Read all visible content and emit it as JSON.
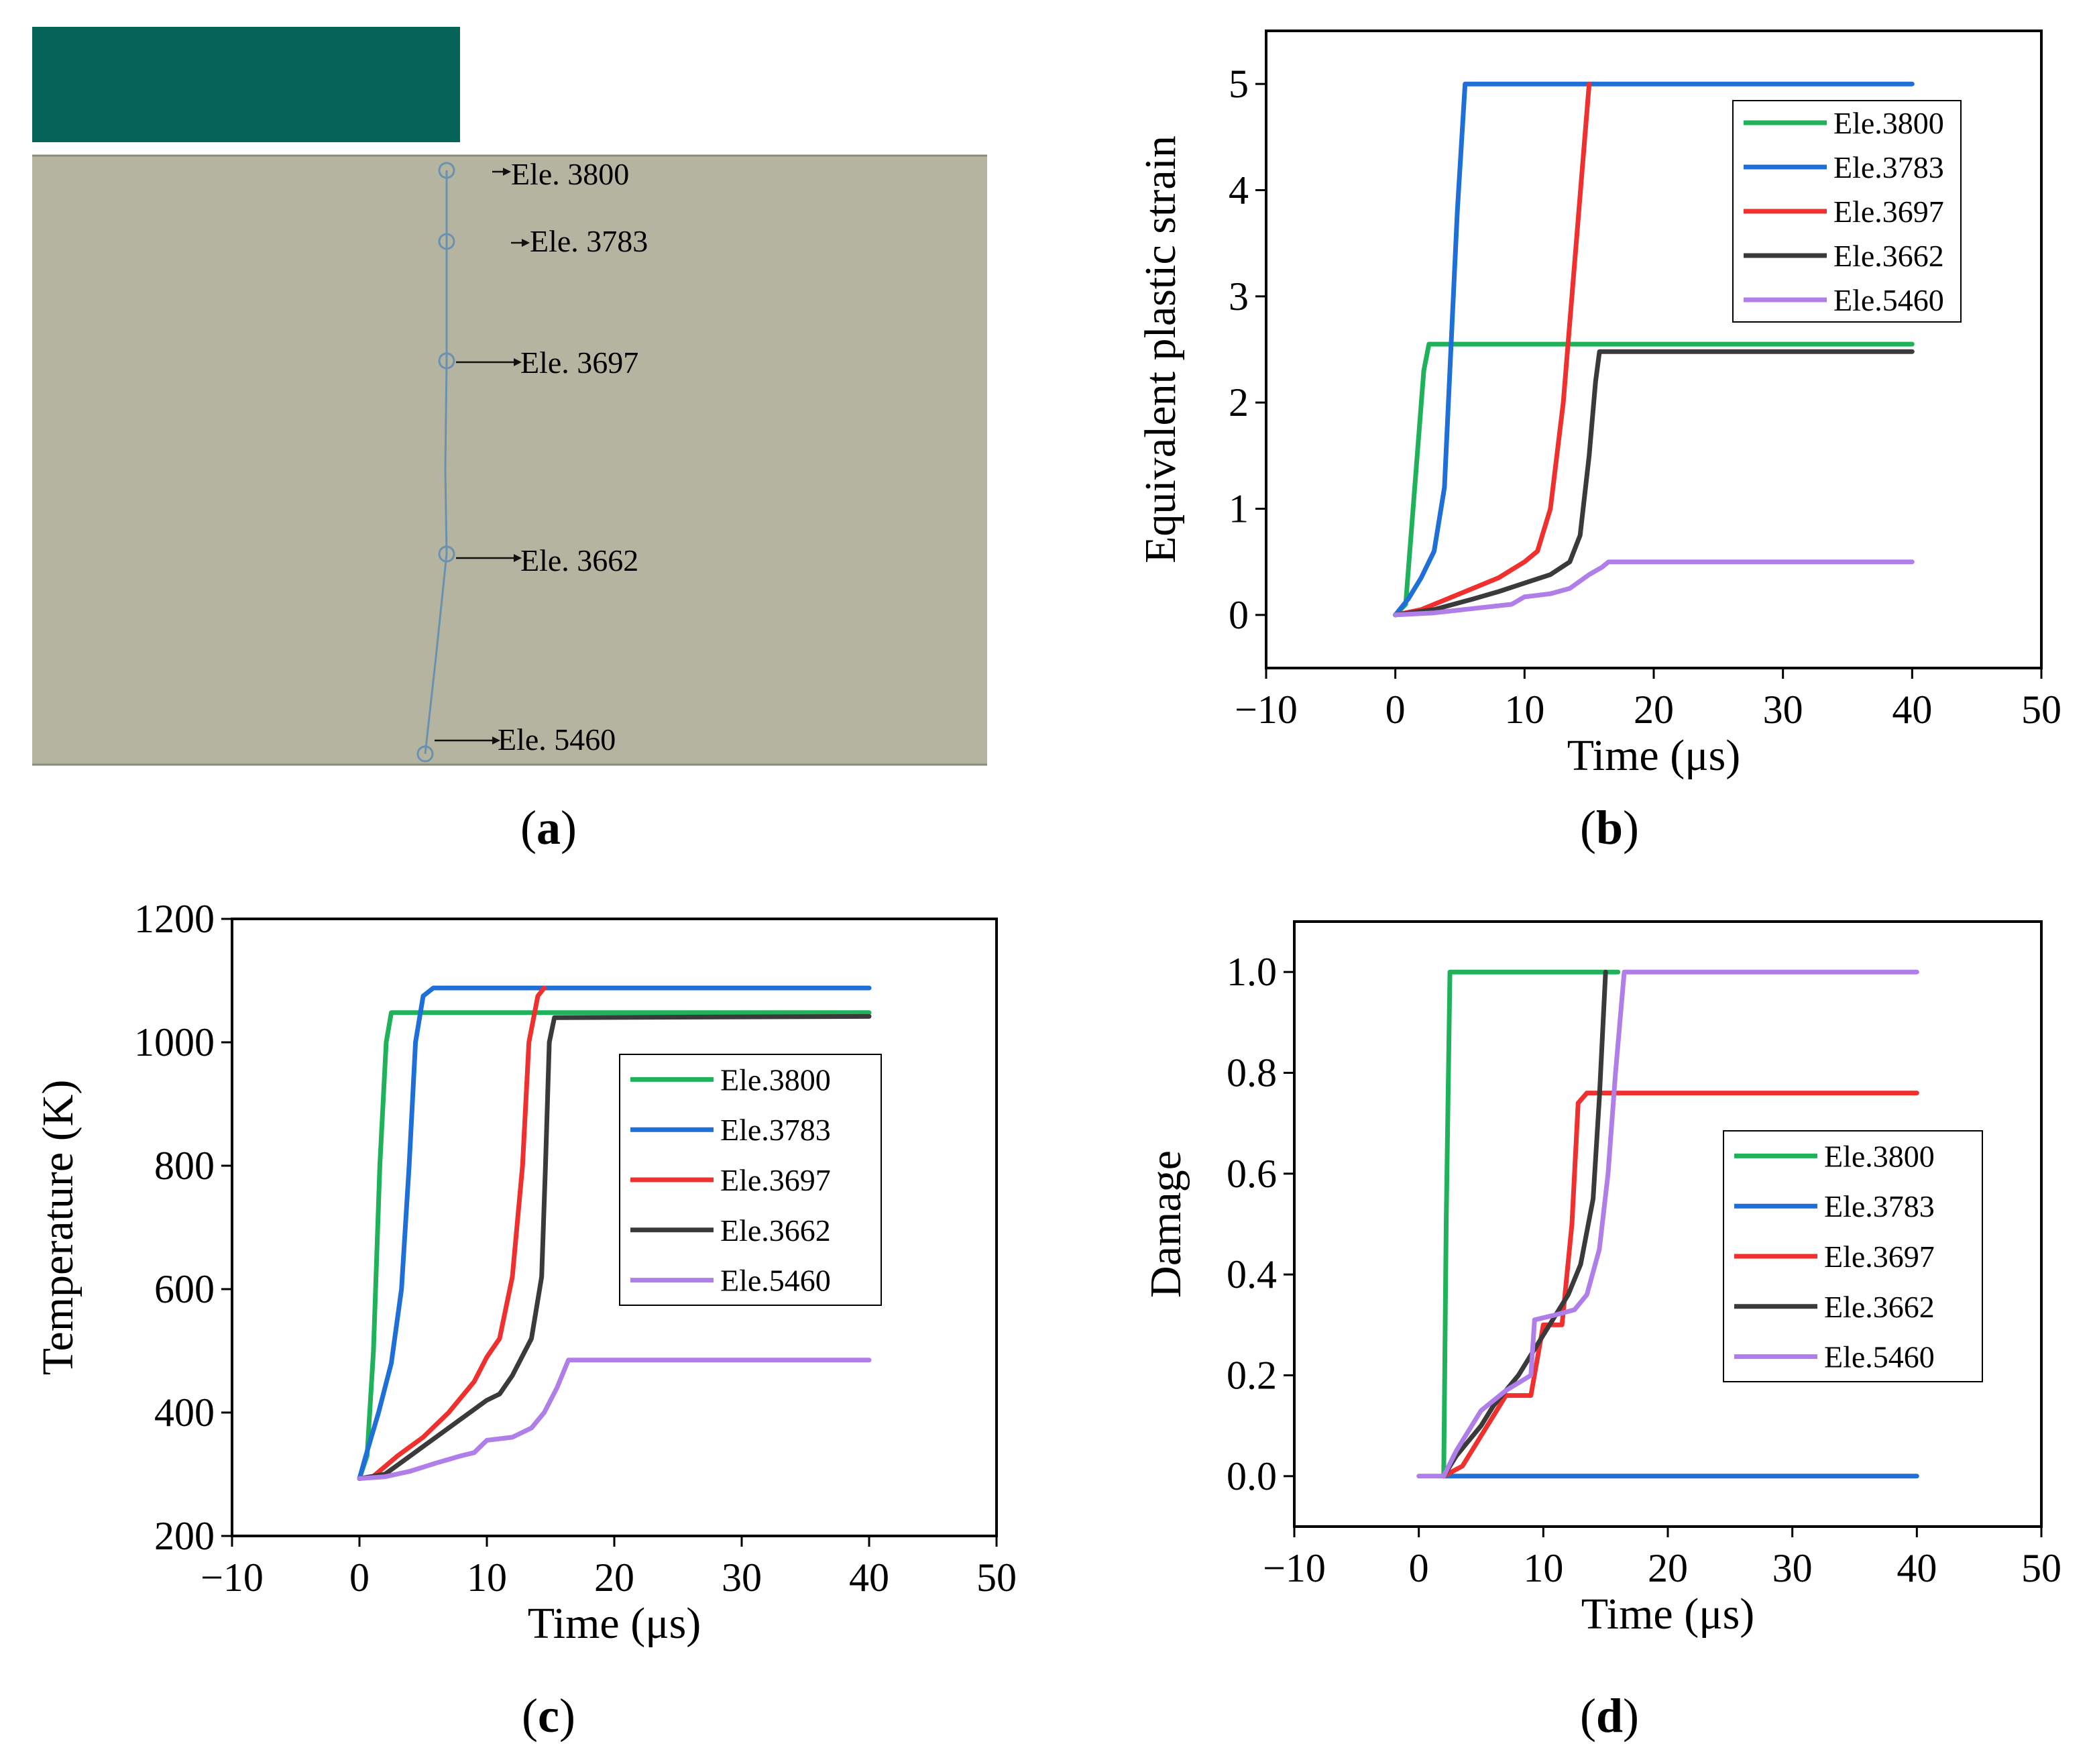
{
  "figure": {
    "panels": [
      {
        "id": "a",
        "caption_pre": "(",
        "caption_letter": "a",
        "caption_post": ")"
      },
      {
        "id": "b",
        "caption_pre": "(",
        "caption_letter": "b",
        "caption_post": ")"
      },
      {
        "id": "c",
        "caption_pre": "(",
        "caption_letter": "c",
        "caption_post": ")"
      },
      {
        "id": "d",
        "caption_pre": "(",
        "caption_letter": "d",
        "caption_post": ")"
      }
    ]
  },
  "panel_a": {
    "colors": {
      "block": "#05645a",
      "workpiece": "#b4b4a0",
      "path": "#6a92b0"
    },
    "elements": [
      {
        "label": "Ele. 3800"
      },
      {
        "label": "Ele. 3783"
      },
      {
        "label": "Ele. 3697"
      },
      {
        "label": "Ele. 3662"
      },
      {
        "label": "Ele. 5460"
      }
    ]
  },
  "series_colors": {
    "Ele.3800": "#1fb25a",
    "Ele.3783": "#1f6fd8",
    "Ele.3697": "#f0302e",
    "Ele.3662": "#3a3a3a",
    "Ele.5460": "#b07ee8"
  },
  "chart_data": [
    {
      "panel": "b",
      "type": "line",
      "xlabel": "Time (μs)",
      "ylabel": "Equivalent plastic strain",
      "xlim": [
        -10,
        50
      ],
      "ylim": [
        -0.5,
        5.5
      ],
      "xticks": [
        -10,
        0,
        10,
        20,
        30,
        40,
        50
      ],
      "xtick_labels": [
        "−10",
        "0",
        "10",
        "20",
        "30",
        "40",
        "50"
      ],
      "yticks": [
        0,
        1,
        2,
        3,
        4,
        5
      ],
      "ytick_labels": [
        "0",
        "1",
        "2",
        "3",
        "4",
        "5"
      ],
      "legend_position": "top-right",
      "series": [
        {
          "name": "Ele.3800",
          "points": [
            [
              0,
              0
            ],
            [
              0.8,
              0.1
            ],
            [
              1.5,
              1.2
            ],
            [
              2.2,
              2.3
            ],
            [
              2.6,
              2.55
            ],
            [
              40,
              2.55
            ]
          ]
        },
        {
          "name": "Ele.3783",
          "points": [
            [
              0,
              0
            ],
            [
              1,
              0.15
            ],
            [
              2,
              0.35
            ],
            [
              3,
              0.6
            ],
            [
              3.8,
              1.2
            ],
            [
              4.3,
              2.5
            ],
            [
              4.8,
              3.8
            ],
            [
              5.4,
              5.0
            ],
            [
              40,
              5.0
            ]
          ]
        },
        {
          "name": "Ele.3697",
          "points": [
            [
              0,
              0
            ],
            [
              2,
              0.05
            ],
            [
              4,
              0.15
            ],
            [
              6,
              0.25
            ],
            [
              8,
              0.35
            ],
            [
              10,
              0.5
            ],
            [
              11,
              0.6
            ],
            [
              12,
              1.0
            ],
            [
              13,
              2.0
            ],
            [
              14,
              3.5
            ],
            [
              15,
              5.0
            ]
          ]
        },
        {
          "name": "Ele.3662",
          "points": [
            [
              0,
              0
            ],
            [
              3,
              0.05
            ],
            [
              6,
              0.15
            ],
            [
              8,
              0.22
            ],
            [
              10,
              0.3
            ],
            [
              12,
              0.38
            ],
            [
              13.5,
              0.5
            ],
            [
              14.3,
              0.75
            ],
            [
              15,
              1.5
            ],
            [
              15.5,
              2.2
            ],
            [
              15.8,
              2.48
            ],
            [
              40,
              2.48
            ]
          ]
        },
        {
          "name": "Ele.5460",
          "points": [
            [
              0,
              0
            ],
            [
              3,
              0.02
            ],
            [
              6,
              0.06
            ],
            [
              9,
              0.1
            ],
            [
              10,
              0.17
            ],
            [
              12,
              0.2
            ],
            [
              13.5,
              0.25
            ],
            [
              15,
              0.38
            ],
            [
              16,
              0.45
            ],
            [
              16.5,
              0.5
            ],
            [
              40,
              0.5
            ]
          ]
        }
      ]
    },
    {
      "panel": "c",
      "type": "line",
      "xlabel": "Time (μs)",
      "ylabel": "Temperature (K)",
      "xlim": [
        -10,
        50
      ],
      "ylim": [
        200,
        1200
      ],
      "xticks": [
        -10,
        0,
        10,
        20,
        30,
        40,
        50
      ],
      "xtick_labels": [
        "−10",
        "0",
        "10",
        "20",
        "30",
        "40",
        "50"
      ],
      "yticks": [
        200,
        400,
        600,
        800,
        1000,
        1200
      ],
      "ytick_labels": [
        "200",
        "400",
        "600",
        "800",
        "1000",
        "1200"
      ],
      "legend_position": "center-right",
      "series": [
        {
          "name": "Ele.3800",
          "points": [
            [
              0,
              293
            ],
            [
              0.6,
              330
            ],
            [
              1.1,
              500
            ],
            [
              1.6,
              800
            ],
            [
              2.1,
              1000
            ],
            [
              2.5,
              1048
            ],
            [
              40,
              1048
            ]
          ]
        },
        {
          "name": "Ele.3783",
          "points": [
            [
              0,
              293
            ],
            [
              0.5,
              330
            ],
            [
              1.5,
              400
            ],
            [
              2.5,
              480
            ],
            [
              3.3,
              600
            ],
            [
              3.9,
              800
            ],
            [
              4.4,
              1000
            ],
            [
              5,
              1075
            ],
            [
              5.8,
              1088
            ],
            [
              40,
              1088
            ]
          ]
        },
        {
          "name": "Ele.3697",
          "points": [
            [
              0,
              293
            ],
            [
              1,
              295
            ],
            [
              3,
              330
            ],
            [
              5,
              360
            ],
            [
              7,
              400
            ],
            [
              9,
              450
            ],
            [
              10,
              490
            ],
            [
              11,
              520
            ],
            [
              12,
              620
            ],
            [
              12.8,
              800
            ],
            [
              13.3,
              1000
            ],
            [
              14,
              1075
            ],
            [
              14.5,
              1088
            ]
          ]
        },
        {
          "name": "Ele.3662",
          "points": [
            [
              0,
              293
            ],
            [
              2,
              300
            ],
            [
              4,
              330
            ],
            [
              6,
              360
            ],
            [
              8,
              390
            ],
            [
              10,
              420
            ],
            [
              11,
              430
            ],
            [
              12,
              460
            ],
            [
              13.5,
              520
            ],
            [
              14.3,
              620
            ],
            [
              14.6,
              800
            ],
            [
              14.9,
              1000
            ],
            [
              15.3,
              1040
            ],
            [
              40,
              1042
            ]
          ]
        },
        {
          "name": "Ele.5460",
          "points": [
            [
              0,
              293
            ],
            [
              2,
              296
            ],
            [
              4,
              305
            ],
            [
              6,
              318
            ],
            [
              8,
              330
            ],
            [
              9,
              335
            ],
            [
              10,
              355
            ],
            [
              12,
              360
            ],
            [
              13.5,
              375
            ],
            [
              14.5,
              400
            ],
            [
              15.5,
              440
            ],
            [
              16.4,
              485
            ],
            [
              40,
              485
            ]
          ]
        }
      ]
    },
    {
      "panel": "d",
      "type": "line",
      "xlabel": "Time (μs)",
      "ylabel": "Damage",
      "xlim": [
        -10,
        50
      ],
      "ylim": [
        -0.1,
        1.1
      ],
      "xticks": [
        -10,
        0,
        10,
        20,
        30,
        40,
        50
      ],
      "xtick_labels": [
        "−10",
        "0",
        "10",
        "20",
        "30",
        "40",
        "50"
      ],
      "yticks": [
        0,
        0.2,
        0.4,
        0.6,
        0.8,
        1.0
      ],
      "ytick_labels": [
        "0.0",
        "0.2",
        "0.4",
        "0.6",
        "0.8",
        "1.0"
      ],
      "legend_position": "center-right",
      "series": [
        {
          "name": "Ele.3800",
          "points": [
            [
              2,
              0
            ],
            [
              2.2,
              0.5
            ],
            [
              2.5,
              1.0
            ],
            [
              16,
              1.0
            ]
          ]
        },
        {
          "name": "Ele.3783",
          "points": [
            [
              2,
              0
            ],
            [
              40,
              0
            ]
          ]
        },
        {
          "name": "Ele.3697",
          "points": [
            [
              2,
              0
            ],
            [
              3.5,
              0.02
            ],
            [
              5,
              0.08
            ],
            [
              6,
              0.12
            ],
            [
              7,
              0.16
            ],
            [
              9,
              0.16
            ],
            [
              10,
              0.3
            ],
            [
              11.5,
              0.3
            ],
            [
              12.3,
              0.5
            ],
            [
              12.8,
              0.74
            ],
            [
              13.5,
              0.76
            ],
            [
              40,
              0.76
            ]
          ]
        },
        {
          "name": "Ele.3662",
          "points": [
            [
              2,
              0
            ],
            [
              3,
              0.04
            ],
            [
              5,
              0.1
            ],
            [
              6,
              0.14
            ],
            [
              7,
              0.17
            ],
            [
              8,
              0.2
            ],
            [
              9,
              0.24
            ],
            [
              10,
              0.28
            ],
            [
              11,
              0.32
            ],
            [
              12,
              0.36
            ],
            [
              13,
              0.42
            ],
            [
              14,
              0.55
            ],
            [
              14.5,
              0.75
            ],
            [
              15,
              1.0
            ]
          ]
        },
        {
          "name": "Ele.5460",
          "points": [
            [
              0,
              0
            ],
            [
              2,
              0
            ],
            [
              3,
              0.05
            ],
            [
              5,
              0.13
            ],
            [
              7,
              0.17
            ],
            [
              9,
              0.2
            ],
            [
              9.3,
              0.31
            ],
            [
              11,
              0.32
            ],
            [
              12.5,
              0.33
            ],
            [
              13.5,
              0.36
            ],
            [
              14.5,
              0.45
            ],
            [
              15.2,
              0.6
            ],
            [
              15.8,
              0.8
            ],
            [
              16.5,
              1.0
            ],
            [
              40,
              1.0
            ]
          ]
        }
      ]
    }
  ]
}
